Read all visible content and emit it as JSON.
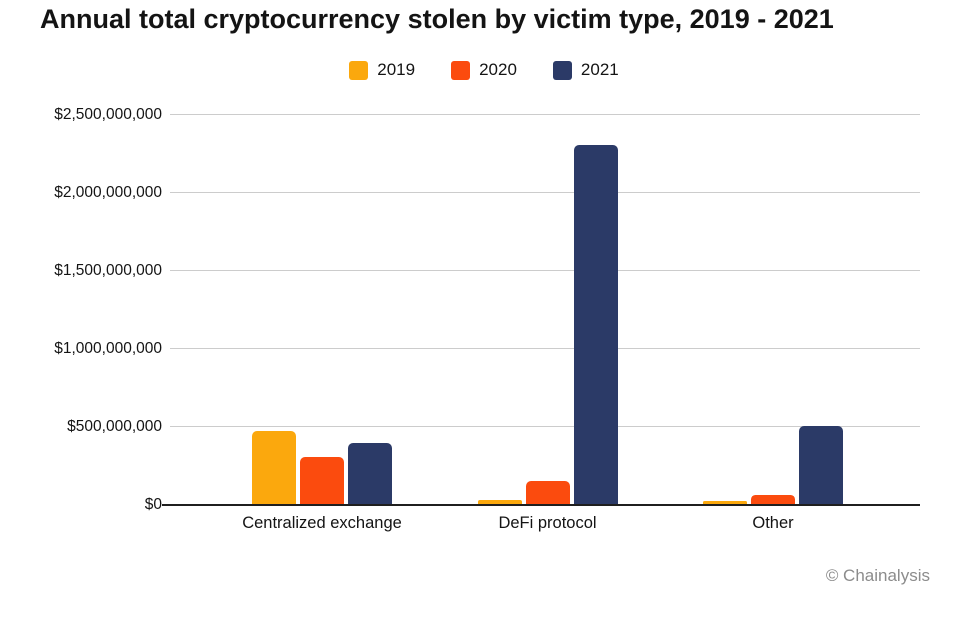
{
  "title": "Annual total cryptocurrency stolen by victim type, 2019 - 2021",
  "footer": {
    "credit": "© Chainalysis"
  },
  "colors": {
    "series_2019": "#FBA80D",
    "series_2020": "#FB4B0E",
    "series_2021": "#2B3A67",
    "gridline": "#cccccc",
    "axis": "#1f1f1f",
    "text": "#141414",
    "credit_text": "#8c8c8c"
  },
  "chart_data": {
    "type": "bar",
    "title": "Annual total cryptocurrency stolen by victim type, 2019 - 2021",
    "categories": [
      "Centralized exchange",
      "DeFi protocol",
      "Other"
    ],
    "series": [
      {
        "name": "2019",
        "color": "#FBA80D",
        "values": [
          465000000,
          25000000,
          20000000
        ]
      },
      {
        "name": "2020",
        "color": "#FB4B0E",
        "values": [
          300000000,
          150000000,
          55000000
        ]
      },
      {
        "name": "2021",
        "color": "#2B3A67",
        "values": [
          390000000,
          2300000000,
          500000000
        ]
      }
    ],
    "xlabel": "",
    "ylabel": "",
    "ylim": [
      0,
      2500000000
    ],
    "ytick_interval": 500000000,
    "ytick_labels": [
      "$0",
      "$500,000,000",
      "$1,000,000,000",
      "$1,500,000,000",
      "$2,000,000,000",
      "$2,500,000,000"
    ],
    "legend_position": "top-center",
    "grid": "horizontal",
    "credit": "© Chainalysis"
  }
}
